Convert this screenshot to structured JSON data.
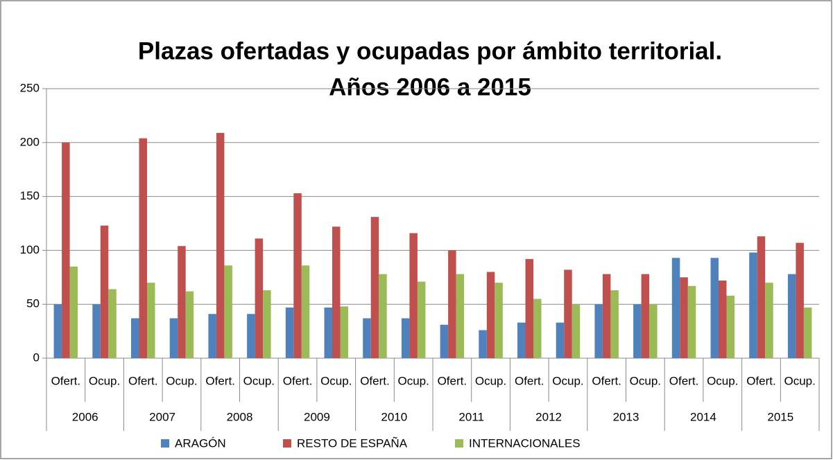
{
  "chart_data": {
    "type": "bar",
    "title": [
      "Plazas ofertadas y ocupadas por ámbito territorial.",
      "Años 2006 a 2015"
    ],
    "categories": [
      "Ofert.",
      "Ocup.",
      "Ofert.",
      "Ocup.",
      "Ofert.",
      "Ocup.",
      "Ofert.",
      "Ocup.",
      "Ofert.",
      "Ocup.",
      "Ofert.",
      "Ocup.",
      "Ofert.",
      "Ocup.",
      "Ofert.",
      "Ocup.",
      "Ofert.",
      "Ocup.",
      "Ofert.",
      "Ocup."
    ],
    "groups": [
      "2006",
      "2007",
      "2008",
      "2009",
      "2010",
      "2011",
      "2012",
      "2013",
      "2014",
      "2015"
    ],
    "series": [
      {
        "name": "ARAGÓN",
        "color": "#4f81bd",
        "values": [
          50,
          50,
          37,
          37,
          41,
          41,
          47,
          47,
          37,
          37,
          31,
          26,
          33,
          33,
          50,
          50,
          93,
          93,
          98,
          78
        ]
      },
      {
        "name": "RESTO DE ESPAÑA",
        "color": "#c0504d",
        "values": [
          200,
          123,
          204,
          104,
          209,
          111,
          153,
          122,
          131,
          116,
          100,
          80,
          92,
          82,
          78,
          78,
          75,
          72,
          113,
          107
        ]
      },
      {
        "name": "INTERNACIONALES",
        "color": "#9bbb59",
        "values": [
          85,
          64,
          70,
          62,
          86,
          63,
          86,
          48,
          78,
          71,
          78,
          70,
          55,
          50,
          63,
          50,
          67,
          58,
          70,
          47
        ]
      }
    ],
    "ylim": [
      0,
      250
    ],
    "yticks": [
      0,
      50,
      100,
      150,
      200,
      250
    ],
    "grid": true,
    "legend": "bottom"
  }
}
